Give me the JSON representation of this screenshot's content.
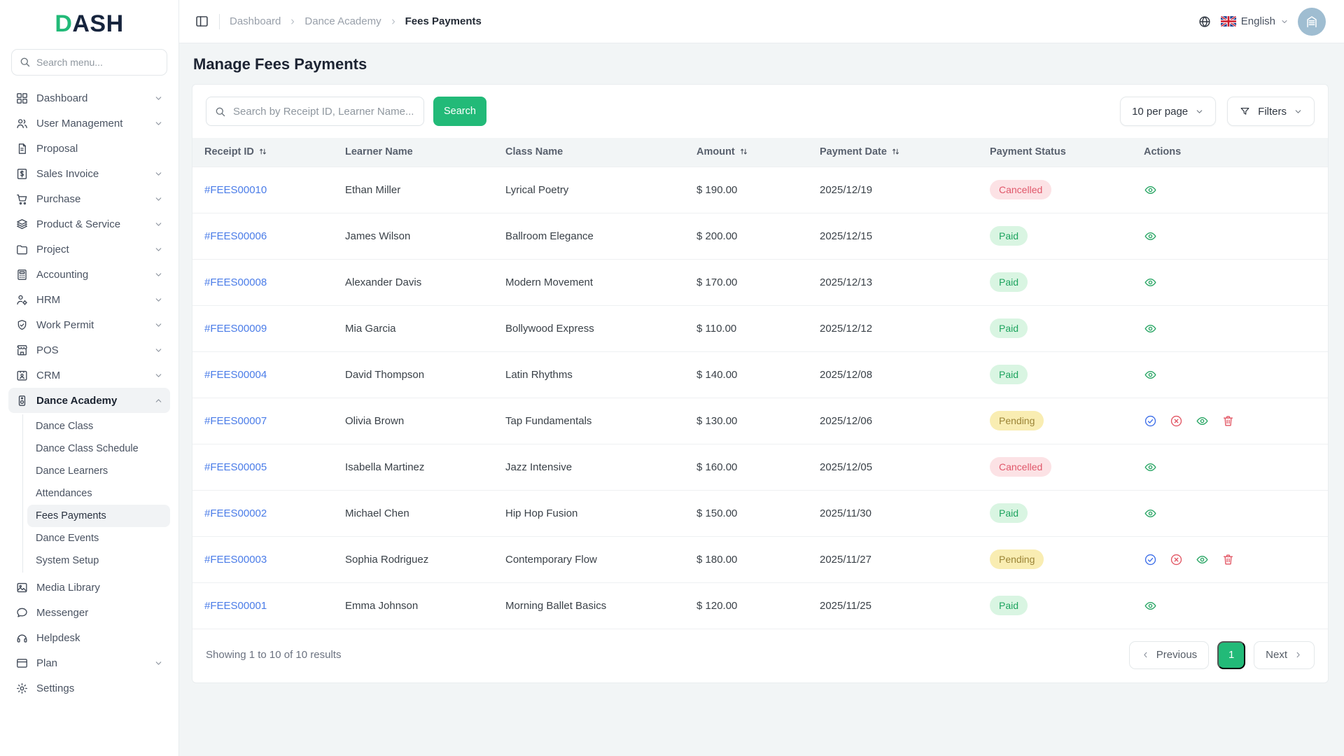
{
  "brand": {
    "primary": "D",
    "secondary": "ASH"
  },
  "theme": {
    "accent_green": "#22ba78",
    "link_blue": "#4a7ce8",
    "paid_bg": "#d9f5e2",
    "paid_text": "#1ea45f",
    "pending_bg": "#f9edb2",
    "pending_text": "#9b8436",
    "cancelled_bg": "#fce2e5",
    "cancelled_text": "#e0576a"
  },
  "sidebar": {
    "search_placeholder": "Search menu...",
    "items": [
      {
        "label": "Dashboard",
        "icon": "dashboard",
        "chevron": "down"
      },
      {
        "label": "User Management",
        "icon": "users",
        "chevron": "down"
      },
      {
        "label": "Proposal",
        "icon": "proposal",
        "chevron": "none"
      },
      {
        "label": "Sales Invoice",
        "icon": "invoice",
        "chevron": "down"
      },
      {
        "label": "Purchase",
        "icon": "cart",
        "chevron": "down"
      },
      {
        "label": "Product & Service",
        "icon": "layers",
        "chevron": "down"
      },
      {
        "label": "Project",
        "icon": "folder",
        "chevron": "down"
      },
      {
        "label": "Accounting",
        "icon": "calculator",
        "chevron": "down"
      },
      {
        "label": "HRM",
        "icon": "person-gear",
        "chevron": "down"
      },
      {
        "label": "Work Permit",
        "icon": "shield-check",
        "chevron": "down"
      },
      {
        "label": "POS",
        "icon": "store",
        "chevron": "down"
      },
      {
        "label": "CRM",
        "icon": "id-card",
        "chevron": "down"
      },
      {
        "label": "Dance Academy",
        "icon": "speaker",
        "chevron": "up",
        "active": true,
        "children": [
          "Dance Class",
          "Dance Class Schedule",
          "Dance Learners",
          "Attendances",
          "Fees Payments",
          "Dance Events",
          "System Setup"
        ],
        "active_child": "Fees Payments"
      },
      {
        "label": "Media Library",
        "icon": "image",
        "chevron": "none"
      },
      {
        "label": "Messenger",
        "icon": "chat",
        "chevron": "none"
      },
      {
        "label": "Helpdesk",
        "icon": "headset",
        "chevron": "none"
      },
      {
        "label": "Plan",
        "icon": "credit-card",
        "chevron": "down"
      },
      {
        "label": "Settings",
        "icon": "gear",
        "chevron": "none"
      }
    ]
  },
  "header": {
    "breadcrumb": [
      "Dashboard",
      "Dance Academy",
      "Fees Payments"
    ],
    "language": "English"
  },
  "page": {
    "title": "Manage Fees Payments"
  },
  "toolbar": {
    "search_placeholder": "Search by Receipt ID, Learner Name...",
    "search_button": "Search",
    "per_page": "10 per page",
    "filters": "Filters"
  },
  "table": {
    "columns": [
      {
        "label": "Receipt ID",
        "sortable": true
      },
      {
        "label": "Learner Name",
        "sortable": false
      },
      {
        "label": "Class Name",
        "sortable": false
      },
      {
        "label": "Amount",
        "sortable": true
      },
      {
        "label": "Payment Date",
        "sortable": true
      },
      {
        "label": "Payment Status",
        "sortable": false
      },
      {
        "label": "Actions",
        "sortable": false
      }
    ],
    "rows": [
      {
        "receipt_id": "#FEES00010",
        "learner": "Ethan Miller",
        "class": "Lyrical Poetry",
        "amount": "$ 190.00",
        "date": "2025/12/19",
        "status": "Cancelled",
        "actions": [
          "view"
        ]
      },
      {
        "receipt_id": "#FEES00006",
        "learner": "James Wilson",
        "class": "Ballroom Elegance",
        "amount": "$ 200.00",
        "date": "2025/12/15",
        "status": "Paid",
        "actions": [
          "view"
        ]
      },
      {
        "receipt_id": "#FEES00008",
        "learner": "Alexander Davis",
        "class": "Modern Movement",
        "amount": "$ 170.00",
        "date": "2025/12/13",
        "status": "Paid",
        "actions": [
          "view"
        ]
      },
      {
        "receipt_id": "#FEES00009",
        "learner": "Mia Garcia",
        "class": "Bollywood Express",
        "amount": "$ 110.00",
        "date": "2025/12/12",
        "status": "Paid",
        "actions": [
          "view"
        ]
      },
      {
        "receipt_id": "#FEES00004",
        "learner": "David Thompson",
        "class": "Latin Rhythms",
        "amount": "$ 140.00",
        "date": "2025/12/08",
        "status": "Paid",
        "actions": [
          "view"
        ]
      },
      {
        "receipt_id": "#FEES00007",
        "learner": "Olivia Brown",
        "class": "Tap Fundamentals",
        "amount": "$ 130.00",
        "date": "2025/12/06",
        "status": "Pending",
        "actions": [
          "approve",
          "reject",
          "view",
          "delete"
        ]
      },
      {
        "receipt_id": "#FEES00005",
        "learner": "Isabella Martinez",
        "class": "Jazz Intensive",
        "amount": "$ 160.00",
        "date": "2025/12/05",
        "status": "Cancelled",
        "actions": [
          "view"
        ]
      },
      {
        "receipt_id": "#FEES00002",
        "learner": "Michael Chen",
        "class": "Hip Hop Fusion",
        "amount": "$ 150.00",
        "date": "2025/11/30",
        "status": "Paid",
        "actions": [
          "view"
        ]
      },
      {
        "receipt_id": "#FEES00003",
        "learner": "Sophia Rodriguez",
        "class": "Contemporary Flow",
        "amount": "$ 180.00",
        "date": "2025/11/27",
        "status": "Pending",
        "actions": [
          "approve",
          "reject",
          "view",
          "delete"
        ]
      },
      {
        "receipt_id": "#FEES00001",
        "learner": "Emma Johnson",
        "class": "Morning Ballet Basics",
        "amount": "$ 120.00",
        "date": "2025/11/25",
        "status": "Paid",
        "actions": [
          "view"
        ]
      }
    ]
  },
  "footer": {
    "summary": "Showing 1 to 10 of 10 results",
    "previous": "Previous",
    "page": "1",
    "next": "Next"
  }
}
